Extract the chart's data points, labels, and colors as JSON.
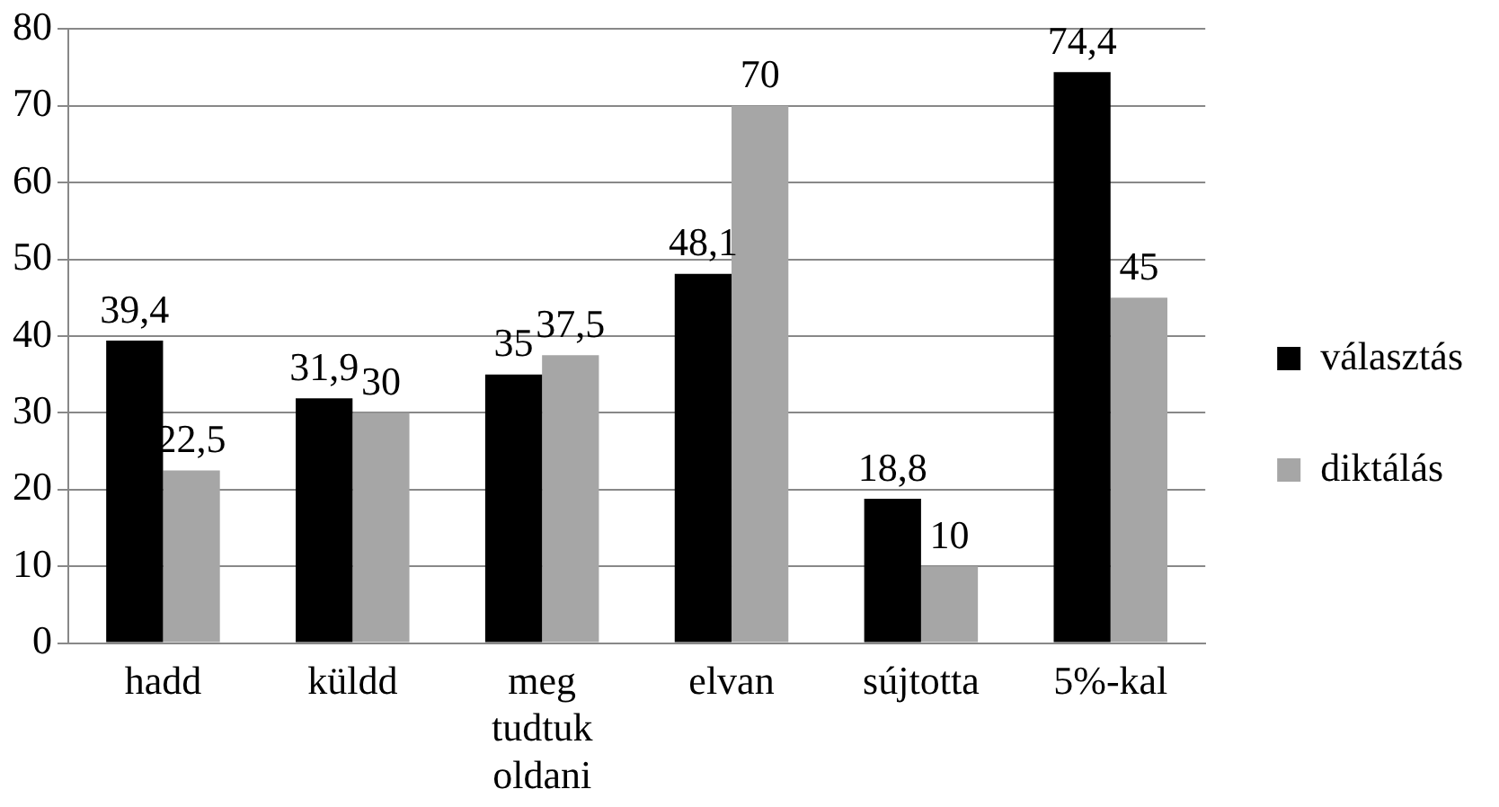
{
  "chart_data": {
    "type": "bar",
    "categories": [
      "hadd",
      "küldd",
      "meg tudtuk oldani",
      "elvan",
      "sújtotta",
      "5%-kal"
    ],
    "series": [
      {
        "name": "választás",
        "color": "#000000",
        "values": [
          39.4,
          31.9,
          35,
          48.1,
          18.8,
          74.4
        ],
        "value_labels": [
          "39,4",
          "31,9",
          "35",
          "48,1",
          "18,8",
          "74,4"
        ]
      },
      {
        "name": "diktálás",
        "color": "#a6a6a6",
        "values": [
          22.5,
          30,
          37.5,
          70,
          10,
          45
        ],
        "value_labels": [
          "22,5",
          "30",
          "37,5",
          "70",
          "10",
          "45"
        ]
      }
    ],
    "ylim": [
      0,
      80
    ],
    "yticks": [
      0,
      10,
      20,
      30,
      40,
      50,
      60,
      70,
      80
    ],
    "grid": "y",
    "legend": "right"
  }
}
